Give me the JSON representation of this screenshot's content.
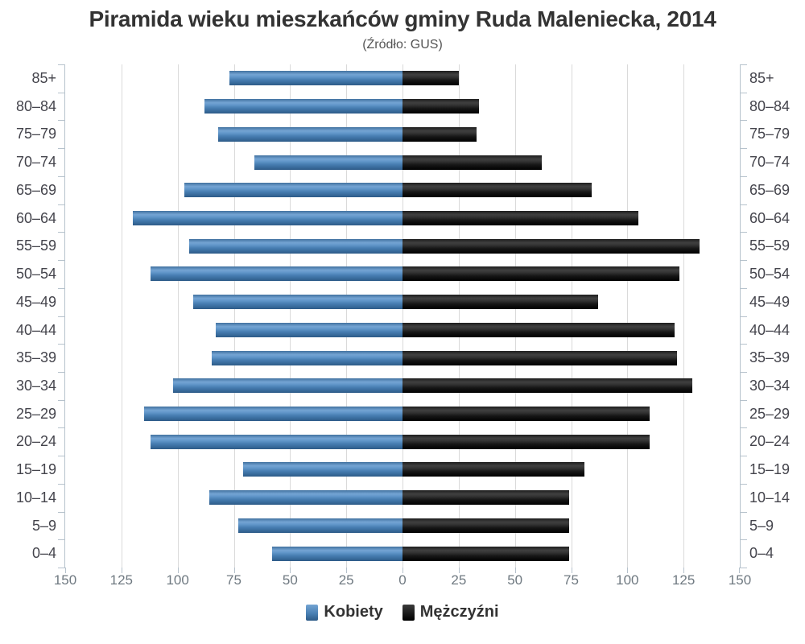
{
  "title": "Piramida wieku mieszkańców gminy Ruda Maleniecka, 2014",
  "subtitle": "(Źródło: GUS)",
  "legend": {
    "items": [
      {
        "label": "Kobiety",
        "color": "#4e84b8",
        "series": "female"
      },
      {
        "label": "Mężczyźni",
        "color": "#1a1a1a",
        "series": "male"
      }
    ]
  },
  "colors": {
    "female_bar": "#4e84b8",
    "male_bar": "#1a1a1a",
    "axis_line": "#b6c2cc",
    "gridline": "#dadada",
    "title_text": "#333333",
    "age_label_text": "#44444c",
    "x_label_text": "#6f7981"
  },
  "chart_data": {
    "type": "bar",
    "variant": "population-pyramid",
    "orientation": "horizontal",
    "title": "Piramida wieku mieszkańców gminy Ruda Maleniecka, 2014",
    "subtitle": "(Źródło: GUS)",
    "categories": [
      "85+",
      "80–84",
      "75–79",
      "70–74",
      "65–69",
      "60–64",
      "55–59",
      "50–54",
      "45–49",
      "40–44",
      "35–39",
      "30–34",
      "25–29",
      "20–24",
      "15–19",
      "10–14",
      "5–9",
      "0–4"
    ],
    "series": [
      {
        "name": "Kobiety",
        "side": "left",
        "color": "#4e84b8",
        "values": [
          77,
          88,
          82,
          66,
          97,
          120,
          95,
          112,
          93,
          83,
          85,
          102,
          115,
          112,
          71,
          86,
          73,
          58
        ]
      },
      {
        "name": "Mężczyźni",
        "side": "right",
        "color": "#1a1a1a",
        "values": [
          25,
          34,
          33,
          62,
          84,
          105,
          132,
          123,
          87,
          121,
          122,
          129,
          110,
          110,
          81,
          74,
          74,
          74
        ]
      }
    ],
    "x_axis": {
      "max_each_side": 150,
      "grid_interval": 25,
      "tick_labels": [
        "150",
        "125",
        "100",
        "75",
        "50",
        "25",
        "0",
        "25",
        "50",
        "75",
        "100",
        "125",
        "150"
      ]
    },
    "grid": "vertical-only",
    "legend_position": "bottom-center"
  }
}
